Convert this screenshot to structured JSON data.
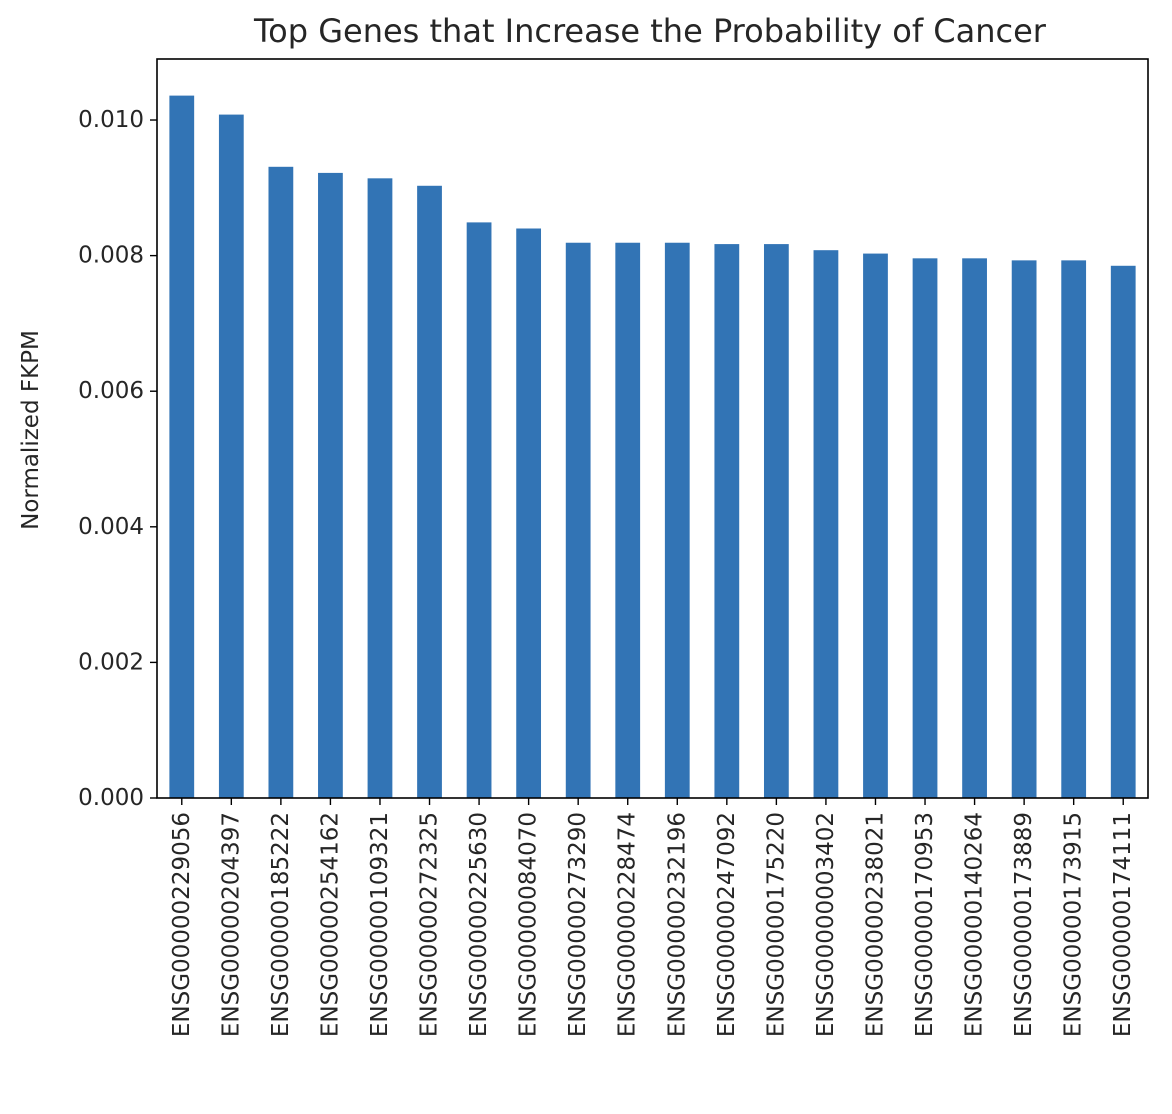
{
  "chart_data": {
    "type": "bar",
    "title": "Top Genes that Increase the Probability of Cancer",
    "xlabel": "",
    "ylabel": "Normalized FKPM",
    "ylim": [
      0,
      0.0109
    ],
    "yticks": [
      "0.000",
      "0.002",
      "0.004",
      "0.006",
      "0.008",
      "0.010"
    ],
    "bar_color": "#3274b5",
    "grid": false,
    "categories": [
      "ENSG00000229056",
      "ENSG00000204397",
      "ENSG00000185222",
      "ENSG00000254162",
      "ENSG00000109321",
      "ENSG00000272325",
      "ENSG00000225630",
      "ENSG00000084070",
      "ENSG00000273290",
      "ENSG00000228474",
      "ENSG00000232196",
      "ENSG00000247092",
      "ENSG00000175220",
      "ENSG00000003402",
      "ENSG00000238021",
      "ENSG00000170953",
      "ENSG00000140264",
      "ENSG00000173889",
      "ENSG00000173915",
      "ENSG00000174111"
    ],
    "values": [
      0.01036,
      0.01008,
      0.00931,
      0.00922,
      0.00914,
      0.00903,
      0.00849,
      0.0084,
      0.00819,
      0.00819,
      0.00819,
      0.00817,
      0.00817,
      0.00808,
      0.00803,
      0.00796,
      0.00796,
      0.00793,
      0.00793,
      0.00785
    ]
  }
}
